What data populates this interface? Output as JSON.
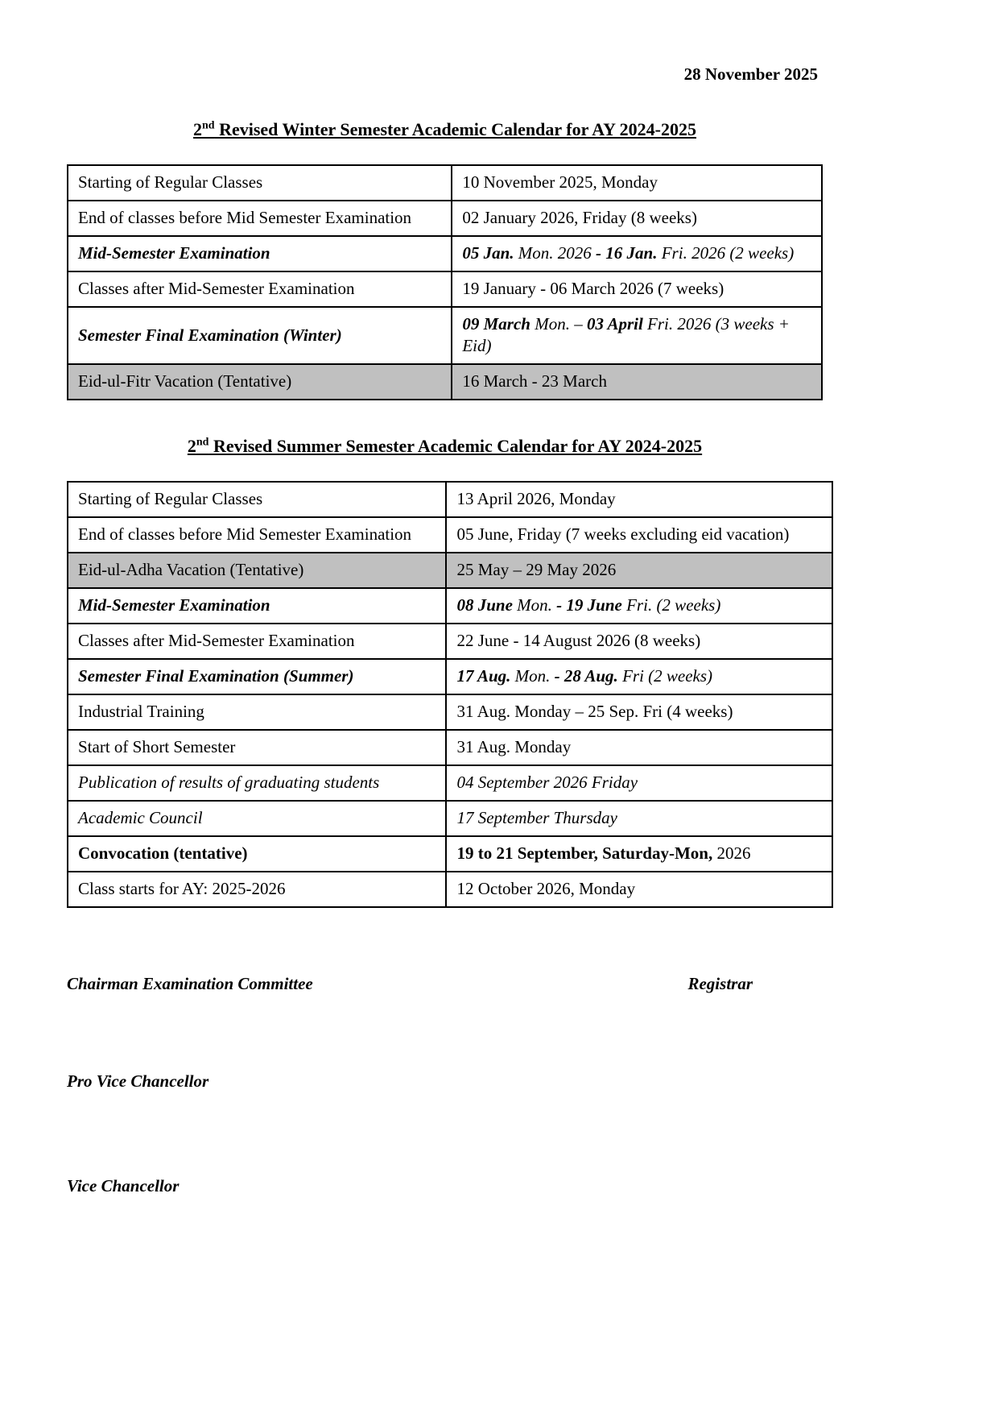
{
  "page": {
    "date": "28 November 2025"
  },
  "colors": {
    "shaded_row": "#c0c0c0",
    "border": "#000000",
    "background": "#ffffff"
  },
  "winter": {
    "title": {
      "num": "2",
      "sup": "nd",
      "rest": " Revised Winter Semester Academic Calendar for AY 2024-2025"
    },
    "rows": [
      {
        "label": "Starting of Regular Classes",
        "value": "10 November 2025, Monday"
      },
      {
        "label": "End of classes before Mid Semester Examination",
        "value": "02 January 2026, Friday (8 weeks)"
      },
      {
        "label": "Mid-Semester Examination",
        "value_rich": [
          {
            "t": "05 Jan.",
            "b": true,
            "i": true
          },
          {
            "t": " Mon. 2026 ",
            "i": true
          },
          {
            "t": "- 16 Jan.",
            "b": true,
            "i": true
          },
          {
            "t": " Fri. 2026 (2 weeks)",
            "i": true
          }
        ]
      },
      {
        "label": "Classes after Mid-Semester Examination",
        "value": "19 January - 06 March 2026 (7 weeks)"
      },
      {
        "label": "Semester Final Examination (Winter)",
        "value_rich": [
          {
            "t": "09 March",
            "b": true,
            "i": true
          },
          {
            "t": " Mon. – ",
            "i": true
          },
          {
            "t": "03 April",
            "b": true,
            "i": true
          },
          {
            "t": " Fri. 2026 (3 weeks + Eid)",
            "i": true
          }
        ]
      },
      {
        "label": "Eid-ul-Fitr Vacation (Tentative)",
        "value": "16 March - 23 March"
      }
    ]
  },
  "summer": {
    "title": {
      "num": "2",
      "sup": "nd",
      "rest": " Revised Summer Semester Academic Calendar for AY 2024-2025"
    },
    "rows": [
      {
        "label": "Starting of Regular Classes",
        "value": "13 April 2026, Monday"
      },
      {
        "label": "End of classes before Mid Semester Examination",
        "value": "05 June, Friday (7 weeks excluding eid vacation)"
      },
      {
        "label": "Eid-ul-Adha Vacation (Tentative)",
        "value": "25 May – 29 May 2026"
      },
      {
        "label": "Mid-Semester Examination",
        "value_rich": [
          {
            "t": "08 June",
            "b": true,
            "i": true
          },
          {
            "t": " Mon. ",
            "i": true
          },
          {
            "t": "- 19 June",
            "b": true,
            "i": true
          },
          {
            "t": " Fri. (2 weeks)",
            "i": true
          }
        ]
      },
      {
        "label": "Classes after Mid-Semester Examination",
        "value": "22 June - 14 August 2026 (8 weeks)"
      },
      {
        "label": "Semester Final Examination (Summer)",
        "value_rich": [
          {
            "t": "17 Aug.",
            "b": true,
            "i": true
          },
          {
            "t": " Mon. ",
            "i": true
          },
          {
            "t": "- 28 Aug.",
            "b": true,
            "i": true
          },
          {
            "t": " Fri (2 weeks)",
            "i": true
          }
        ]
      },
      {
        "label": "Industrial Training",
        "value": "31 Aug. Monday – 25 Sep. Fri (4 weeks)"
      },
      {
        "label": "Start of Short Semester",
        "value": "31 Aug. Monday"
      },
      {
        "label": "Publication of results of graduating students",
        "value": "04 September 2026 Friday"
      },
      {
        "label": "Academic Council",
        "value": "17 September Thursday"
      },
      {
        "label": "Convocation (tentative)",
        "value_rich": [
          {
            "t": "19 to 21 September, Saturday-Mon,",
            "b": true
          },
          {
            "t": " 2026"
          }
        ]
      },
      {
        "label": "Class starts for AY: 2025-2026",
        "value": "12 October 2026, Monday"
      }
    ]
  },
  "signatures": {
    "chairman": "Chairman Examination Committee",
    "registrar": "Registrar",
    "pro_vice_chancellor": "Pro Vice Chancellor",
    "vice_chancellor": "Vice Chancellor"
  }
}
